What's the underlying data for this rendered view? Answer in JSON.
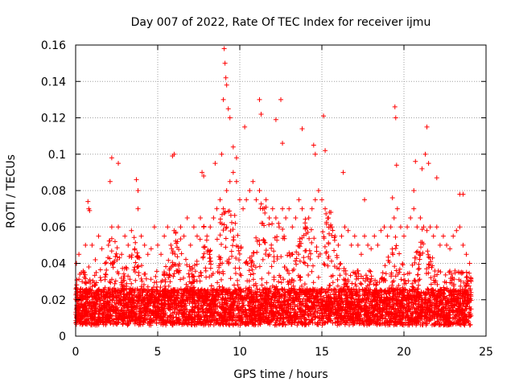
{
  "chart_data": {
    "type": "scatter",
    "title": "Day 007 of 2022, Rate Of TEC Index for receiver ijmu",
    "xlabel": "GPS time / hours",
    "ylabel": "ROTI / TECUs",
    "xlim": [
      0,
      25
    ],
    "ylim": [
      0,
      0.16
    ],
    "x_ticks": [
      0,
      5,
      10,
      15,
      20,
      25
    ],
    "x_tick_labels": [
      "0",
      "5",
      "10",
      "15",
      "20",
      "25"
    ],
    "y_ticks": [
      0,
      0.02,
      0.04,
      0.06,
      0.08,
      0.1,
      0.12,
      0.14,
      0.16
    ],
    "y_tick_labels": [
      "0",
      "0.02",
      "0.04",
      "0.06",
      "0.08",
      "0.1",
      "0.12",
      "0.14",
      "0.16"
    ],
    "grid": true,
    "marker": "+",
    "color": "#ff0000",
    "series": [
      {
        "x": [
          0.05,
          0.2,
          0.4,
          0.6,
          0.8,
          1.0,
          1.2,
          1.4,
          1.6,
          1.8,
          2.0,
          2.2,
          2.4,
          2.6,
          2.8,
          3.0,
          3.2,
          3.4,
          3.6,
          3.8,
          4.0,
          4.2,
          4.4,
          4.6,
          4.8,
          5.0,
          5.2,
          5.4,
          5.6,
          5.8,
          6.0,
          6.2,
          6.4,
          6.6,
          6.8,
          7.0,
          7.2,
          7.4,
          7.6,
          7.8,
          8.0,
          8.2,
          8.4,
          8.6,
          8.8,
          9.0,
          9.2,
          9.4,
          9.6,
          9.8,
          10.0,
          10.2,
          10.4,
          10.6,
          10.8,
          11.0,
          11.2,
          11.4,
          11.6,
          11.8,
          12.0,
          12.2,
          12.4,
          12.6,
          12.8,
          13.0,
          13.2,
          13.4,
          13.6,
          13.8,
          14.0,
          14.2,
          14.4,
          14.6,
          14.8,
          15.0,
          15.2,
          15.4,
          15.6,
          15.8,
          16.0,
          16.2,
          16.4,
          16.6,
          16.8,
          17.0,
          17.2,
          17.4,
          17.6,
          17.8,
          18.0,
          18.2,
          18.4,
          18.6,
          18.8,
          19.0,
          19.2,
          19.4,
          19.6,
          19.8,
          20.0,
          20.2,
          20.4,
          20.6,
          20.8,
          21.0,
          21.2,
          21.4,
          21.6,
          21.8,
          22.0,
          22.2,
          22.4,
          22.6,
          22.8,
          23.0,
          23.2,
          23.4,
          23.6,
          23.8,
          24.0,
          0.75,
          0.8,
          0.85,
          2.1,
          2.2,
          2.6,
          3.7,
          3.8,
          5.9,
          6.0,
          7.7,
          7.8,
          8.5,
          8.9,
          9.0,
          9.05,
          9.1,
          9.15,
          9.2,
          9.3,
          9.4,
          9.6,
          9.8,
          10.3,
          11.2,
          11.3,
          12.2,
          12.5,
          12.6,
          13.8,
          14.5,
          14.6,
          15.1,
          15.2,
          16.3,
          17.6,
          19.3,
          19.45,
          19.5,
          19.55,
          20.6,
          20.7,
          21.1,
          21.3,
          21.4,
          21.5,
          22.0,
          23.4,
          23.6
        ],
        "y": [
          0.04,
          0.045,
          0.03,
          0.05,
          0.038,
          0.05,
          0.042,
          0.055,
          0.048,
          0.04,
          0.05,
          0.06,
          0.052,
          0.06,
          0.045,
          0.055,
          0.05,
          0.058,
          0.048,
          0.07,
          0.055,
          0.05,
          0.045,
          0.048,
          0.06,
          0.05,
          0.045,
          0.055,
          0.06,
          0.05,
          0.058,
          0.052,
          0.06,
          0.055,
          0.065,
          0.05,
          0.06,
          0.055,
          0.065,
          0.06,
          0.055,
          0.06,
          0.065,
          0.07,
          0.075,
          0.07,
          0.08,
          0.085,
          0.09,
          0.085,
          0.075,
          0.07,
          0.075,
          0.08,
          0.085,
          0.075,
          0.08,
          0.07,
          0.075,
          0.065,
          0.07,
          0.065,
          0.06,
          0.07,
          0.065,
          0.07,
          0.06,
          0.065,
          0.075,
          0.07,
          0.06,
          0.065,
          0.07,
          0.075,
          0.08,
          0.075,
          0.07,
          0.065,
          0.06,
          0.055,
          0.05,
          0.055,
          0.06,
          0.058,
          0.05,
          0.055,
          0.05,
          0.045,
          0.055,
          0.05,
          0.048,
          0.055,
          0.05,
          0.058,
          0.06,
          0.055,
          0.06,
          0.065,
          0.07,
          0.06,
          0.055,
          0.06,
          0.065,
          0.07,
          0.06,
          0.065,
          0.06,
          0.058,
          0.06,
          0.055,
          0.06,
          0.05,
          0.055,
          0.05,
          0.048,
          0.055,
          0.058,
          0.06,
          0.05,
          0.045,
          0.04,
          0.074,
          0.07,
          0.069,
          0.085,
          0.098,
          0.095,
          0.086,
          0.08,
          0.099,
          0.1,
          0.09,
          0.088,
          0.095,
          0.1,
          0.13,
          0.158,
          0.15,
          0.142,
          0.138,
          0.125,
          0.12,
          0.104,
          0.098,
          0.115,
          0.13,
          0.122,
          0.119,
          0.13,
          0.106,
          0.114,
          0.105,
          0.1,
          0.121,
          0.102,
          0.09,
          0.075,
          0.076,
          0.126,
          0.12,
          0.094,
          0.08,
          0.096,
          0.092,
          0.1,
          0.115,
          0.095,
          0.087,
          0.078,
          0.078
        ]
      }
    ]
  }
}
